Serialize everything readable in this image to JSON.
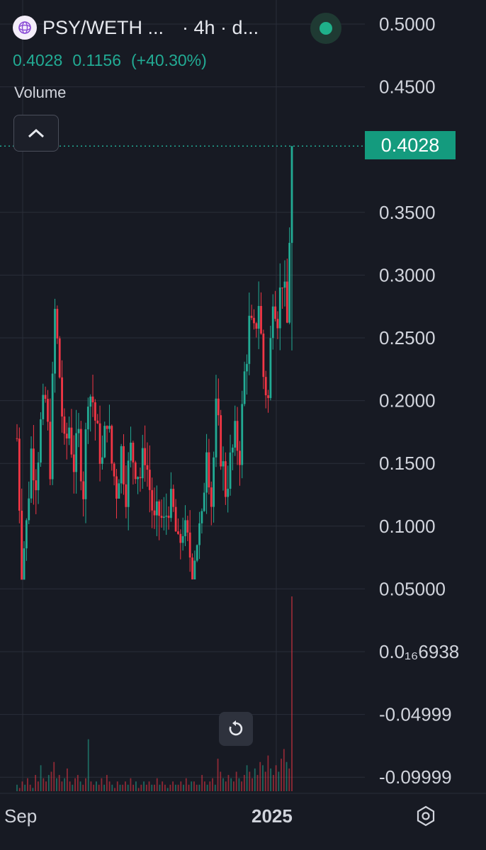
{
  "header": {
    "pair": "PSY/WETH ...",
    "meta": "· 4h · d...",
    "last": "0.4028",
    "change": "0.1156",
    "change_pct": "(+40.30%)"
  },
  "volume_label": "Volume",
  "price_tag": "0.4028",
  "colors": {
    "up": "#22ab94",
    "down": "#f23645",
    "bg": "#171a23",
    "grid": "#2a2e39"
  },
  "chart_data": {
    "type": "candlestick",
    "interval": "4h",
    "y_ticks": [
      "0.5000",
      "0.4500",
      "0.3500",
      "0.3000",
      "0.2500",
      "0.2000",
      "0.1500",
      "0.1000",
      "0.05000",
      "0.0₁₆6938",
      "-0.04999",
      "-0.09999"
    ],
    "x_ticks": [
      "Sep",
      "2025"
    ],
    "ylim": [
      -0.1,
      0.5
    ],
    "last_price": 0.4028,
    "series": [
      {
        "name": "PSY/WETH",
        "close_path": [
          [
            0,
            0.17
          ],
          [
            2,
            0.07
          ],
          [
            4,
            0.1
          ],
          [
            6,
            0.16
          ],
          [
            8,
            0.14
          ],
          [
            10,
            0.18
          ],
          [
            12,
            0.2
          ],
          [
            14,
            0.15
          ],
          [
            16,
            0.27
          ],
          [
            18,
            0.22
          ],
          [
            20,
            0.16
          ],
          [
            22,
            0.18
          ],
          [
            24,
            0.15
          ],
          [
            26,
            0.17
          ],
          [
            28,
            0.13
          ],
          [
            30,
            0.21
          ],
          [
            32,
            0.2
          ],
          [
            34,
            0.17
          ],
          [
            36,
            0.15
          ],
          [
            38,
            0.19
          ],
          [
            40,
            0.15
          ],
          [
            42,
            0.13
          ],
          [
            44,
            0.16
          ],
          [
            46,
            0.13
          ],
          [
            48,
            0.16
          ],
          [
            50,
            0.15
          ],
          [
            52,
            0.14
          ],
          [
            54,
            0.16
          ],
          [
            56,
            0.13
          ],
          [
            58,
            0.1
          ],
          [
            60,
            0.11
          ],
          [
            62,
            0.1
          ],
          [
            64,
            0.12
          ],
          [
            66,
            0.11
          ],
          [
            68,
            0.08
          ],
          [
            70,
            0.1
          ],
          [
            72,
            0.085
          ],
          [
            74,
            0.07
          ],
          [
            76,
            0.09
          ],
          [
            78,
            0.1
          ],
          [
            80,
            0.17
          ],
          [
            82,
            0.12
          ],
          [
            84,
            0.19
          ],
          [
            86,
            0.16
          ],
          [
            88,
            0.13
          ],
          [
            90,
            0.15
          ],
          [
            92,
            0.17
          ],
          [
            94,
            0.16
          ],
          [
            96,
            0.22
          ],
          [
            98,
            0.26
          ],
          [
            100,
            0.25
          ],
          [
            102,
            0.28
          ],
          [
            104,
            0.22
          ],
          [
            106,
            0.2
          ],
          [
            108,
            0.29
          ],
          [
            110,
            0.27
          ],
          [
            112,
            0.3
          ],
          [
            114,
            0.26
          ],
          [
            116,
            0.4028
          ]
        ],
        "high": 0.4028,
        "low": 0.063
      }
    ],
    "volume": [
      2,
      1,
      3,
      2,
      4,
      2,
      1,
      5,
      3,
      8,
      4,
      3,
      5,
      6,
      9,
      4,
      5,
      3,
      4,
      7,
      3,
      2,
      4,
      5,
      3,
      2,
      4,
      16,
      3,
      2,
      3,
      2,
      4,
      2,
      5,
      3,
      2,
      1,
      3,
      2,
      2,
      3,
      2,
      4,
      2,
      3,
      1,
      2,
      3,
      2,
      3,
      2,
      2,
      4,
      2,
      3,
      2,
      1,
      2,
      3,
      2,
      2,
      3,
      2,
      4,
      2,
      3,
      3,
      2,
      2,
      5,
      3,
      2,
      3,
      4,
      2,
      10,
      6,
      4,
      3,
      5,
      4,
      3,
      6,
      4,
      3,
      5,
      8,
      6,
      4,
      7,
      5,
      9,
      8,
      6,
      11,
      7,
      5,
      8,
      6,
      10,
      13,
      9,
      7,
      60
    ]
  }
}
